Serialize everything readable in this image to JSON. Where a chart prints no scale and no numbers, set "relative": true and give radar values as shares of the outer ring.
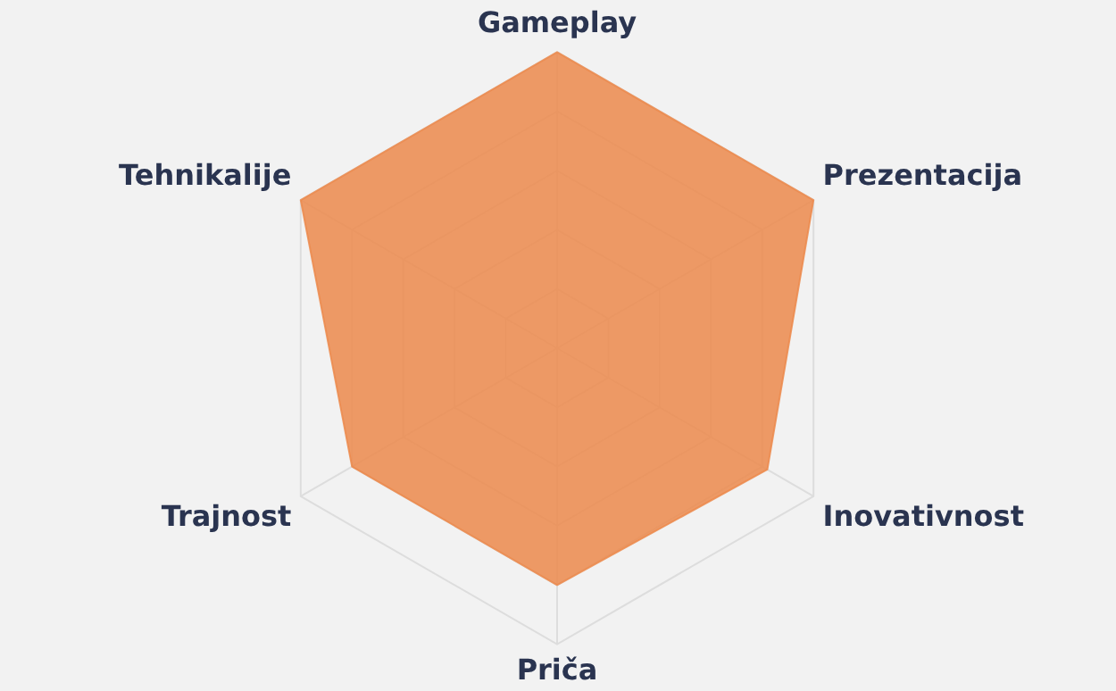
{
  "chart_data": {
    "type": "radar",
    "relative": true,
    "categories": [
      "Gameplay",
      "Prezentacija",
      "Inovativnost",
      "Priča",
      "Trajnost",
      "Tehnikalije"
    ],
    "series": [
      {
        "color": "#ec8a4c",
        "values": [
          1,
          1,
          0.82,
          0.8,
          0.8,
          1
        ]
      }
    ],
    "grid": true,
    "legend": false,
    "marker": "none"
  }
}
